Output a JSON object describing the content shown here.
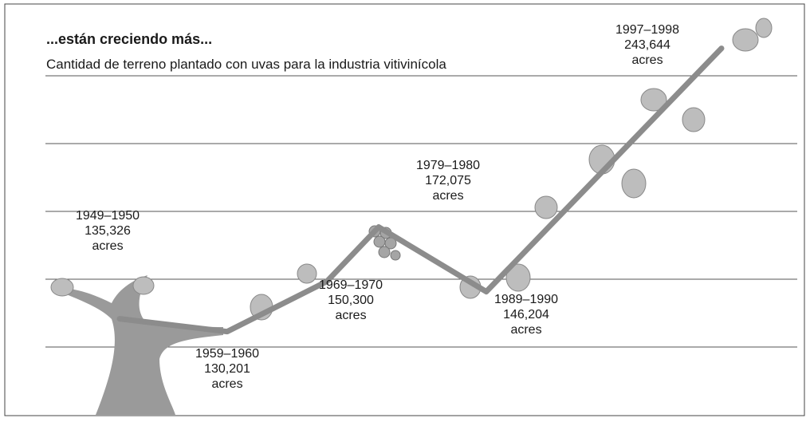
{
  "chart_data": {
    "type": "line",
    "title": "...están creciendo más...",
    "subtitle": "Cantidad de terreno plantado con uvas para la industria vitivinícola",
    "categories": [
      "1949–1950",
      "1959–1960",
      "1969–1970",
      "1979–1980",
      "1989–1990",
      "1997–1998"
    ],
    "values": [
      135326,
      130201,
      150300,
      172075,
      146204,
      243644
    ],
    "value_labels": [
      "135,326",
      "130,201",
      "150,300",
      "172,075",
      "146,204",
      "243,644"
    ],
    "unit": "acres",
    "color": "#8c8c8c",
    "ylim": [
      94000,
      263000
    ]
  }
}
